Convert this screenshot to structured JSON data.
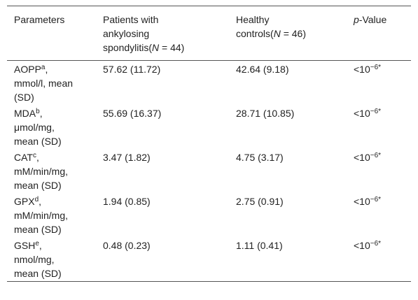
{
  "table": {
    "header": [
      "Parameters",
      {
        "text": "Patients with ankylosing spondylitis(",
        "var": "N",
        "rest": " = 44)"
      },
      {
        "text": "Healthy controls(",
        "var": "N",
        "rest": " = 46)"
      },
      {
        "text": "",
        "var": "p",
        "rest": "-Value"
      }
    ],
    "rows": [
      [
        {
          "name": "AOPP",
          "sup": "a",
          "unit": ", mmol/l, mean (SD)"
        },
        "57.62 (11.72)",
        "42.64 (9.18)",
        {
          "base": "<10",
          "exp": "−6",
          "mark": "*"
        }
      ],
      [
        {
          "name": "MDA",
          "sup": "b",
          "unit": ", μmol/mg, mean (SD)"
        },
        "55.69 (16.37)",
        "28.71 (10.85)",
        {
          "base": "<10",
          "exp": "−6",
          "mark": "*"
        }
      ],
      [
        {
          "name": "CAT",
          "sup": "c",
          "unit": ", mM/min/mg, mean (SD)"
        },
        "3.47 (1.82)",
        "4.75 (3.17)",
        {
          "base": "<10",
          "exp": "−6",
          "mark": "*"
        }
      ],
      [
        {
          "name": "GPX",
          "sup": "d",
          "unit": ", mM/min/mg, mean (SD)"
        },
        "1.94 (0.85)",
        "2.75 (0.91)",
        {
          "base": "<10",
          "exp": "−6",
          "mark": "*"
        }
      ],
      [
        {
          "name": "GSH",
          "sup": "e",
          "unit": ", nmol/mg, mean (SD)"
        },
        "0.48 (0.23)",
        "1.11 (0.41)",
        {
          "base": "<10",
          "exp": "−6",
          "mark": "*"
        }
      ]
    ]
  }
}
